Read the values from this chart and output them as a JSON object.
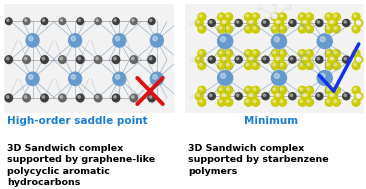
{
  "left_title": "High-order saddle point",
  "left_title_color": "#1a7fd4",
  "left_body": "3D Sandwich complex\nsupported by graphene-like\npolycyclic aromatic\nhydrocarbons",
  "left_body_color": "#000000",
  "right_title": "Minimum",
  "right_title_color": "#1a7fd4",
  "right_body": "3D Sandwich complex\nsupported by starbenzene\npolymers",
  "right_body_color": "#000000",
  "red_x_color": "#dd1111",
  "blue_check_color": "#1133ee",
  "fig_bg": "#ffffff",
  "title_fontsize": 7.5,
  "body_fontsize": 6.8,
  "dark_atom": "#555555",
  "light_atom": "#cccccc",
  "white_atom": "#e8e8e8",
  "blue_metal": "#6699cc",
  "yellow_atom": "#cccc00",
  "bond_color": "#888888",
  "blue_bond": "#7799bb"
}
